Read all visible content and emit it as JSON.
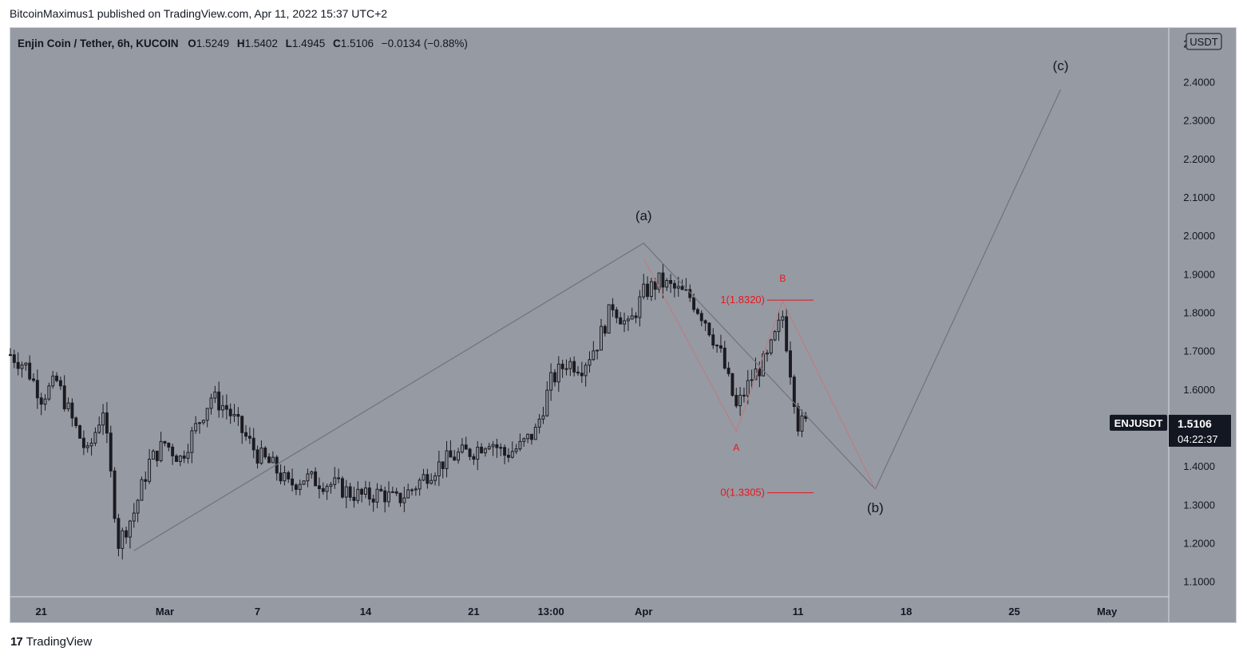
{
  "publisher_line": "BitcoinMaximus1 published on TradingView.com, Apr 11, 2022 15:37 UTC+2",
  "brand": {
    "logo": "17",
    "name": "TradingView"
  },
  "header": {
    "symbol_text": "Enjin Coin / Tether, 6h, KUCOIN",
    "o_label": "O",
    "o_value": "1.5249",
    "h_label": "H",
    "h_value": "1.5402",
    "l_label": "L",
    "l_value": "1.4945",
    "c_label": "C",
    "c_value": "1.5106",
    "change": "−0.0134 (−0.88%)"
  },
  "currency_badge": "USDT",
  "price_badge": {
    "symbol": "ENJUSDT",
    "price": "1.5106",
    "countdown": "04:22:37"
  },
  "colors": {
    "background": "#969aa3",
    "candle": "#1a1b20",
    "wave_line": "#6f737b",
    "fib_red": "#e8161b",
    "badge_dark": "#131722"
  },
  "chart_data": {
    "type": "candlestick",
    "title": "Enjin Coin / Tether, 6h, KUCOIN",
    "ylim": [
      1.06,
      2.54
    ],
    "y_ticks": [
      "1.1000",
      "1.2000",
      "1.3000",
      "1.4000",
      "1.5000",
      "1.6000",
      "1.7000",
      "1.8000",
      "1.9000",
      "2.0000",
      "2.1000",
      "2.2000",
      "2.3000",
      "2.4000",
      "2.5000"
    ],
    "x_start": "2022-02-19",
    "x_end": "2022-05-05",
    "x_ticks": [
      {
        "label": "21",
        "date": "2022-02-21"
      },
      {
        "label": "Mar",
        "date": "2022-03-01"
      },
      {
        "label": "7",
        "date": "2022-03-07"
      },
      {
        "label": "14",
        "date": "2022-03-14"
      },
      {
        "label": "21",
        "date": "2022-03-21"
      },
      {
        "label": "13:00",
        "date": "2022-03-26"
      },
      {
        "label": "Apr",
        "date": "2022-04-01"
      },
      {
        "label": "11",
        "date": "2022-04-11"
      },
      {
        "label": "18",
        "date": "2022-04-18"
      },
      {
        "label": "25",
        "date": "2022-04-25"
      },
      {
        "label": "May",
        "date": "2022-05-01"
      }
    ],
    "price_path": [
      [
        "2022-02-19",
        1.69
      ],
      [
        "2022-02-20",
        1.66
      ],
      [
        "2022-02-21",
        1.58
      ],
      [
        "2022-02-22",
        1.62
      ],
      [
        "2022-02-23",
        1.52
      ],
      [
        "2022-02-24",
        1.43
      ],
      [
        "2022-02-25",
        1.55
      ],
      [
        "2022-02-26",
        1.2
      ],
      [
        "2022-02-27",
        1.28
      ],
      [
        "2022-02-28",
        1.41
      ],
      [
        "2022-03-01",
        1.46
      ],
      [
        "2022-03-02",
        1.42
      ],
      [
        "2022-03-03",
        1.5
      ],
      [
        "2022-03-04",
        1.58
      ],
      [
        "2022-03-05",
        1.55
      ],
      [
        "2022-03-06",
        1.49
      ],
      [
        "2022-03-07",
        1.43
      ],
      [
        "2022-03-08",
        1.4
      ],
      [
        "2022-03-09",
        1.35
      ],
      [
        "2022-03-10",
        1.37
      ],
      [
        "2022-03-11",
        1.36
      ],
      [
        "2022-03-12",
        1.35
      ],
      [
        "2022-03-13",
        1.33
      ],
      [
        "2022-03-14",
        1.32
      ],
      [
        "2022-03-15",
        1.33
      ],
      [
        "2022-03-16",
        1.31
      ],
      [
        "2022-03-17",
        1.34
      ],
      [
        "2022-03-18",
        1.38
      ],
      [
        "2022-03-19",
        1.41
      ],
      [
        "2022-03-20",
        1.43
      ],
      [
        "2022-03-21",
        1.44
      ],
      [
        "2022-03-22",
        1.47
      ],
      [
        "2022-03-23",
        1.43
      ],
      [
        "2022-03-24",
        1.45
      ],
      [
        "2022-03-25",
        1.49
      ],
      [
        "2022-03-26",
        1.62
      ],
      [
        "2022-03-27",
        1.67
      ],
      [
        "2022-03-28",
        1.66
      ],
      [
        "2022-03-29",
        1.72
      ],
      [
        "2022-03-30",
        1.82
      ],
      [
        "2022-03-31",
        1.76
      ],
      [
        "2022-04-01",
        1.85
      ],
      [
        "2022-04-02",
        1.88
      ],
      [
        "2022-04-03",
        1.86
      ],
      [
        "2022-04-04",
        1.84
      ],
      [
        "2022-04-05",
        1.78
      ],
      [
        "2022-04-06",
        1.69
      ],
      [
        "2022-04-07",
        1.55
      ],
      [
        "2022-04-08",
        1.63
      ],
      [
        "2022-04-09",
        1.68
      ],
      [
        "2022-04-10",
        1.79
      ],
      [
        "2022-04-11",
        1.51
      ]
    ],
    "wave_path": [
      {
        "date": "2022-02-27",
        "price": 1.18
      },
      {
        "date": "2022-04-01",
        "price": 1.98
      },
      {
        "date": "2022-04-16",
        "price": 1.34
      },
      {
        "date": "2022-04-28",
        "price": 2.38
      }
    ],
    "abc_path": [
      {
        "date": "2022-04-01",
        "price": 1.94
      },
      {
        "date": "2022-04-07",
        "price": 1.49
      },
      {
        "date": "2022-04-10",
        "price": 1.83
      },
      {
        "date": "2022-04-16",
        "price": 1.34
      }
    ],
    "wave_labels": [
      {
        "text": "(a)",
        "date": "2022-04-01",
        "price": 2.04
      },
      {
        "text": "(b)",
        "date": "2022-04-16",
        "price": 1.28
      },
      {
        "text": "(c)",
        "date": "2022-04-28",
        "price": 2.43
      }
    ],
    "sub_labels": [
      {
        "text": "A",
        "date": "2022-04-07",
        "price": 1.44
      },
      {
        "text": "B",
        "date": "2022-04-10",
        "price": 1.88
      }
    ],
    "fib_levels": [
      {
        "label": "1(1.8320)",
        "value": 1.832,
        "from": "2022-04-09",
        "to": "2022-04-12"
      },
      {
        "label": "0(1.3305)",
        "value": 1.3305,
        "from": "2022-04-09",
        "to": "2022-04-12"
      }
    ],
    "last_price": 1.5106
  }
}
